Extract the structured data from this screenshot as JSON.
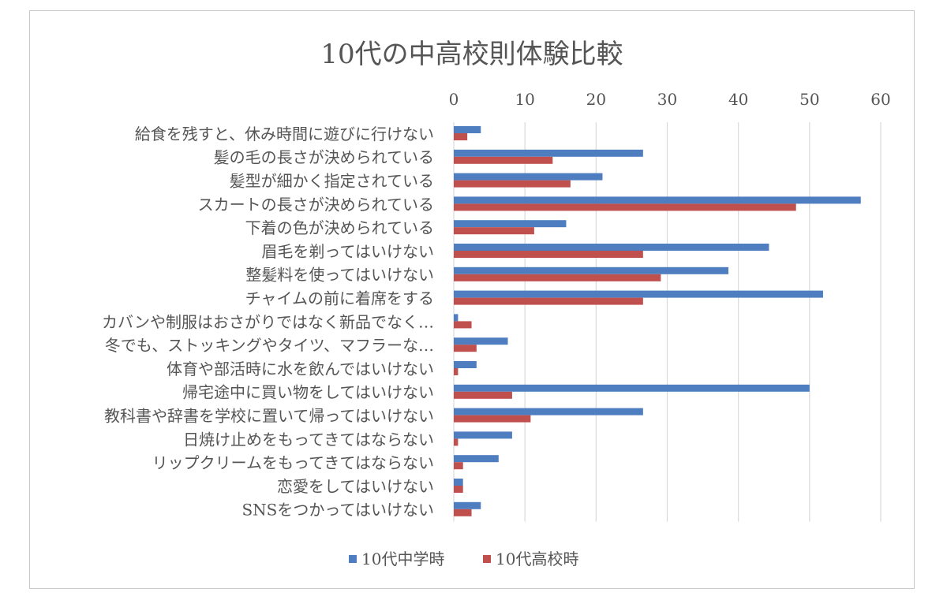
{
  "chart_data": {
    "type": "bar",
    "orientation": "horizontal",
    "title": "10代の中高校則体験比較",
    "categories": [
      "給食を残すと、休み時間に遊びに行けない",
      "髪の毛の長さが決められている",
      "髪型が細かく指定されている",
      "スカートの長さが決められている",
      "下着の色が決められている",
      "眉毛を剃ってはいけない",
      "整髪料を使ってはいけない",
      "チャイムの前に着席をする",
      "カバンや制服はおさがりではなく新品でなく…",
      "冬でも、ストッキングやタイツ、マフラーな…",
      "体育や部活時に水を飲んではいけない",
      "帰宅途中に買い物をしてはいけない",
      "教科書や辞書を学校に置いて帰ってはいけない",
      "日焼け止めをもってきてはならない",
      "リップクリームをもってきてはならない",
      "恋愛をしてはいけない",
      "SNSをつかってはいけない"
    ],
    "series": [
      {
        "name": "10代中学時",
        "color": "#4F7EC0",
        "values": [
          3.8,
          26.6,
          20.9,
          57.2,
          15.8,
          44.3,
          38.6,
          51.9,
          0.6,
          7.6,
          3.2,
          50.0,
          26.6,
          8.2,
          6.3,
          1.3,
          3.8
        ]
      },
      {
        "name": "10代高校時",
        "color": "#C0504D",
        "values": [
          1.9,
          13.9,
          16.4,
          48.1,
          11.3,
          26.6,
          29.1,
          26.6,
          2.5,
          3.2,
          0.6,
          8.2,
          10.8,
          0.6,
          1.3,
          1.3,
          2.5
        ]
      }
    ],
    "xlim": [
      0,
      60
    ],
    "xticks": [
      0,
      10,
      20,
      30,
      40,
      50,
      60
    ],
    "xaxis_position": "top",
    "grid": true,
    "legend": "bottom"
  }
}
